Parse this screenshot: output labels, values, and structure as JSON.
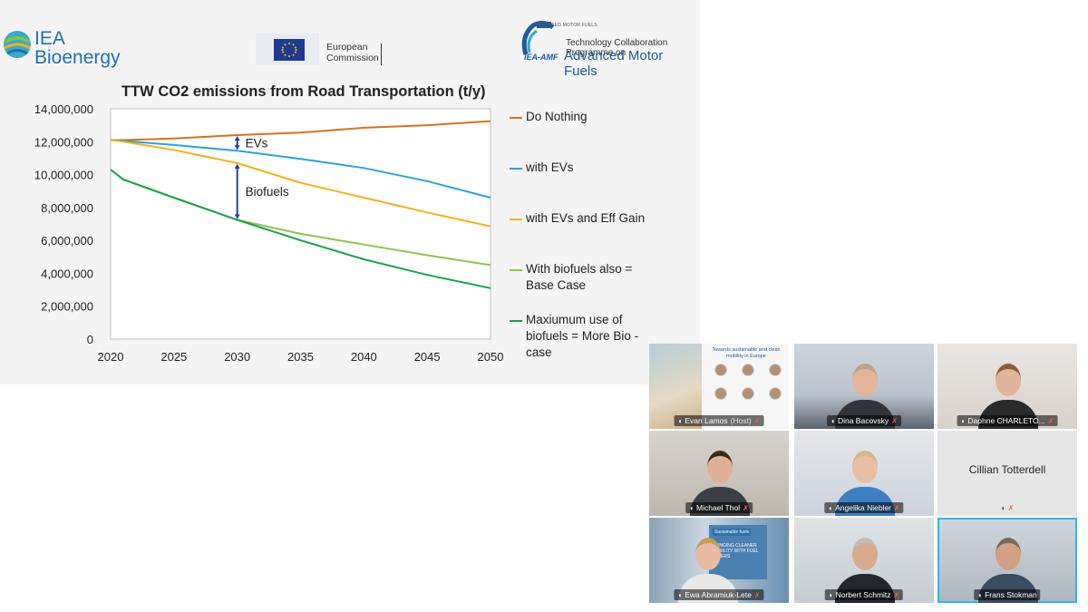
{
  "slide": {
    "logos": {
      "iea_bioenergy": "IEA Bioenergy",
      "ec": [
        "European",
        "Commission"
      ],
      "amf_small": "ADVANCED MOTOR FUELS",
      "amf_line1": "Technology Collaboration Programme on",
      "amf_line2": "Advanced Motor Fuels",
      "amf_badge": "IEA-AMF"
    }
  },
  "chart_data": {
    "type": "line",
    "title": "TTW CO2 emissions from Road Transportation (t/y)",
    "xlabel": "",
    "ylabel": "",
    "x": [
      2020,
      2021,
      2025,
      2030,
      2035,
      2040,
      2045,
      2050
    ],
    "xticks": [
      "2020",
      "2025",
      "2030",
      "2035",
      "2040",
      "2045",
      "2050"
    ],
    "yticks": [
      "0",
      "2,000,000",
      "4,000,000",
      "6,000,000",
      "8,000,000",
      "10,000,000",
      "12,000,000",
      "14,000,000"
    ],
    "ylim": [
      0,
      14000000
    ],
    "grid": false,
    "legend_position": "right",
    "series": [
      {
        "name": "Do Nothing",
        "color": "#d9701f",
        "values": [
          12100000,
          12100000,
          12200000,
          12400000,
          12550000,
          12850000,
          13000000,
          13250000
        ]
      },
      {
        "name": "with EVs",
        "color": "#27a4db",
        "values": [
          12100000,
          12050000,
          11800000,
          11450000,
          10950000,
          10400000,
          9600000,
          8600000
        ]
      },
      {
        "name": "with EVs and Eff Gain",
        "color": "#f2b21e",
        "values": [
          12100000,
          12000000,
          11500000,
          10700000,
          9500000,
          8600000,
          7700000,
          6850000
        ]
      },
      {
        "name": "With biofuels also = Base Case",
        "color": "#8dc64d",
        "values": [
          10300000,
          9700000,
          8600000,
          7250000,
          6400000,
          5750000,
          5100000,
          4500000
        ]
      },
      {
        "name": "Maxiumum use of biofuels = More Bio - case",
        "color": "#18a34a",
        "values": [
          10300000,
          9700000,
          8600000,
          7250000,
          6000000,
          4850000,
          3900000,
          3100000
        ]
      }
    ],
    "annotations": [
      {
        "text": "EVs",
        "x": 2030,
        "from": 12400000,
        "to": 11450000
      },
      {
        "text": "Biofuels",
        "x": 2030,
        "from": 10700000,
        "to": 7250000
      }
    ]
  },
  "meeting": {
    "participants": [
      {
        "name": "Evan Lamos",
        "suffix": "(Host)",
        "muted": true,
        "active": false
      },
      {
        "name": "Dina Bacovsky",
        "suffix": "",
        "muted": true,
        "active": false
      },
      {
        "name": "Daphne CHARLETO...",
        "suffix": "",
        "muted": true,
        "active": false
      },
      {
        "name": "Michael Thol",
        "suffix": "",
        "muted": true,
        "active": false
      },
      {
        "name": "Angelika Niebler",
        "suffix": "",
        "muted": true,
        "active": false
      },
      {
        "name": "Cillian Totterdell",
        "suffix": "",
        "muted": true,
        "active": false,
        "no_video": true
      },
      {
        "name": "Ewa Abramiuk-Lete",
        "suffix": "",
        "muted": true,
        "active": false
      },
      {
        "name": "Norbert Schmitz",
        "suffix": "",
        "muted": true,
        "active": false
      },
      {
        "name": "Frans Stokman",
        "suffix": "",
        "muted": false,
        "active": true
      }
    ],
    "shared_tile": {
      "heading": "Towards sustainable and clean mobility in Europe"
    },
    "banner_texts": {
      "ewa": "BRINGING CLEANER MOBILITY WITH FUEL ETHERS",
      "ewa_sign": "Sustainable fuels"
    }
  }
}
